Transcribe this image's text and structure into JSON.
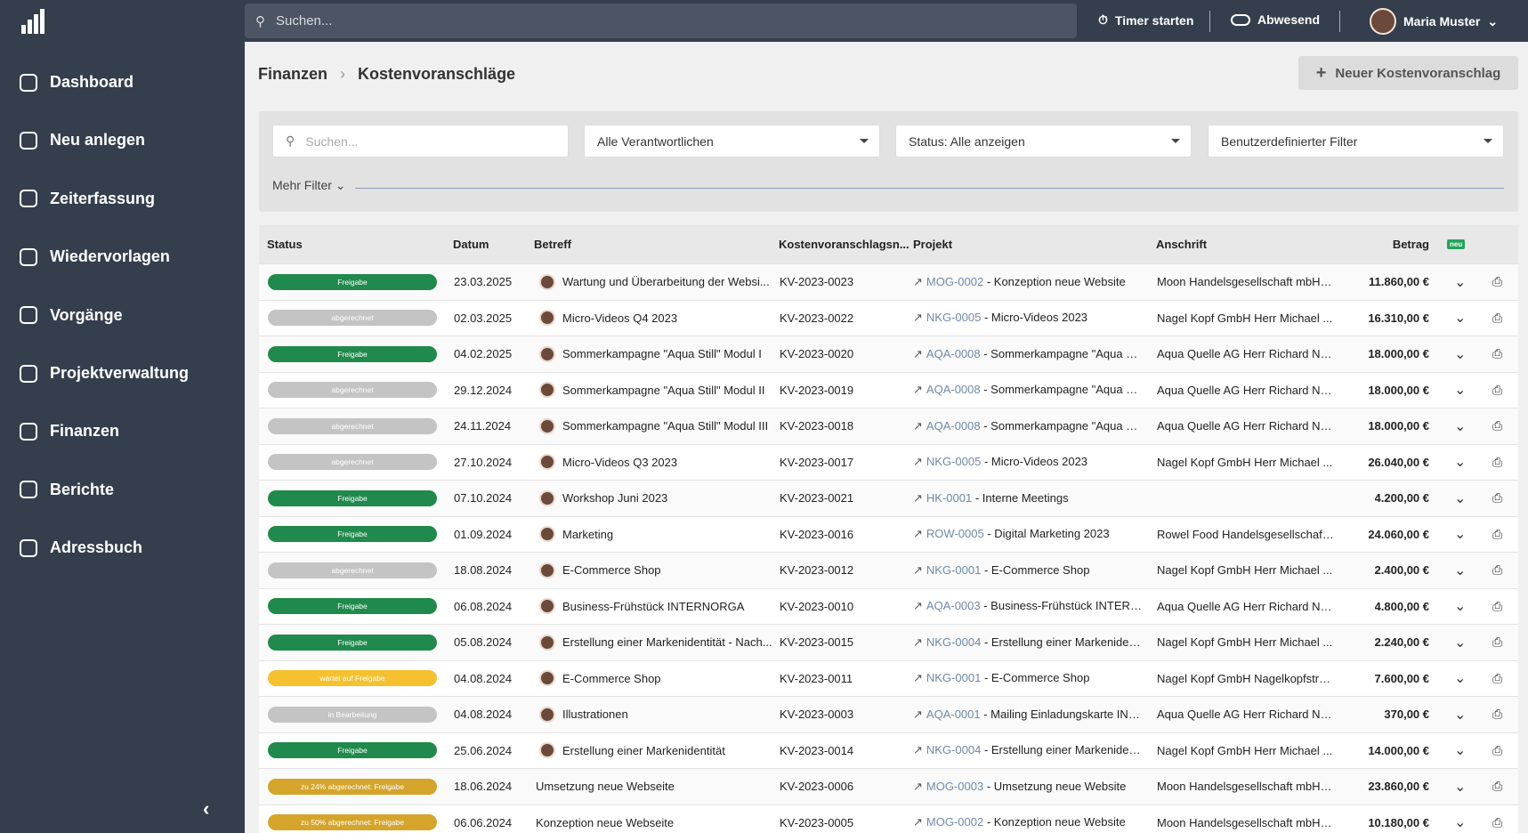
{
  "nav": [
    "Dashboard",
    "Neu anlegen",
    "Zeiterfassung",
    "Wiedervorlagen",
    "Vorgänge",
    "Projektverwaltung",
    "Finanzen",
    "Berichte",
    "Adressbuch"
  ],
  "topbar": {
    "search": "Suchen...",
    "timer": "Timer starten",
    "status": "Abwesend",
    "user": "Maria Muster"
  },
  "breadcrumb": [
    "Finanzen",
    "Kostenvoranschläge"
  ],
  "new_button": "Neuer Kostenvoranschlag",
  "filters": {
    "search": "Suchen...",
    "responsible": "Alle Verantwortlichen",
    "status": "Status: Alle anzeigen",
    "custom": "Benutzerdefinierter Filter",
    "more": "Mehr Filter"
  },
  "table": {
    "headers": [
      "Status",
      "Datum",
      "Betreff",
      "Kostenvoranschlagsn...",
      "Projekt",
      "Anschrift",
      "Betrag"
    ],
    "badge": "neu",
    "rows": [
      {
        "status": "Freigabe",
        "color": "#1f8a4c",
        "date": "23.03.2025",
        "subject": "Wartung und Überarbeitung der Websi...",
        "number": "KV-2023-0023",
        "project_code": "MOG-0002",
        "project": " - Konzeption neue Website",
        "address": "Moon Handelsgesellschaft mbH F...",
        "amount": "11.860,00 €",
        "avatar": true
      },
      {
        "status": "abgerechnet",
        "color": "#c4c4c4",
        "date": "02.03.2025",
        "subject": "Micro-Videos Q4 2023",
        "number": "KV-2023-0022",
        "project_code": "NKG-0005",
        "project": " - Micro-Videos 2023",
        "address": "Nagel Kopf GmbH Herr Michael ...",
        "amount": "16.310,00 €",
        "avatar": true
      },
      {
        "status": "Freigabe",
        "color": "#1f8a4c",
        "date": "04.02.2025",
        "subject": "Sommerkampagne \"Aqua Still\" Modul I",
        "number": "KV-2023-0020",
        "project_code": "AQA-0008",
        "project": " - Sommerkampagne \"Aqua Still\"",
        "address": "Aqua Quelle AG Herr Richard Ne...",
        "amount": "18.000,00 €",
        "avatar": true
      },
      {
        "status": "abgerechnet",
        "color": "#c4c4c4",
        "date": "29.12.2024",
        "subject": "Sommerkampagne \"Aqua Still\" Modul II",
        "number": "KV-2023-0019",
        "project_code": "AQA-0008",
        "project": " - Sommerkampagne \"Aqua Still\"",
        "address": "Aqua Quelle AG Herr Richard Ne...",
        "amount": "18.000,00 €",
        "avatar": true
      },
      {
        "status": "abgerechnet",
        "color": "#c4c4c4",
        "date": "24.11.2024",
        "subject": "Sommerkampagne \"Aqua Still\" Modul III",
        "number": "KV-2023-0018",
        "project_code": "AQA-0008",
        "project": " - Sommerkampagne \"Aqua Still\"",
        "address": "Aqua Quelle AG Herr Richard Ne...",
        "amount": "18.000,00 €",
        "avatar": true
      },
      {
        "status": "abgerechnet",
        "color": "#c4c4c4",
        "date": "27.10.2024",
        "subject": "Micro-Videos Q3 2023",
        "number": "KV-2023-0017",
        "project_code": "NKG-0005",
        "project": " - Micro-Videos 2023",
        "address": "Nagel Kopf GmbH Herr Michael ...",
        "amount": "26.040,00 €",
        "avatar": true
      },
      {
        "status": "Freigabe",
        "color": "#1f8a4c",
        "date": "07.10.2024",
        "subject": "Workshop Juni 2023",
        "number": "KV-2023-0021",
        "project_code": "HK-0001",
        "project": " - Interne Meetings",
        "address": null,
        "amount": "4.200,00 €",
        "avatar": true
      },
      {
        "status": "Freigabe",
        "color": "#1f8a4c",
        "date": "01.09.2024",
        "subject": "Marketing",
        "number": "KV-2023-0016",
        "project_code": "ROW-0005",
        "project": " - Digital Marketing 2023",
        "address": "Rowel Food Handelsgesellschaft ...",
        "amount": "24.060,00 €",
        "avatar": true
      },
      {
        "status": "abgerechnet",
        "color": "#c4c4c4",
        "date": "18.08.2024",
        "subject": "E-Commerce Shop",
        "number": "KV-2023-0012",
        "project_code": "NKG-0001",
        "project": " - E-Commerce Shop",
        "address": "Nagel Kopf GmbH Herr Michael ...",
        "amount": "2.400,00 €",
        "avatar": true
      },
      {
        "status": "Freigabe",
        "color": "#1f8a4c",
        "date": "06.08.2024",
        "subject": "Business-Frühstück INTERNORGA",
        "number": "KV-2023-0010",
        "project_code": "AQA-0003",
        "project": " - Business-Frühstück INTERN...",
        "address": "Aqua Quelle AG Herr Richard Ne...",
        "amount": "4.800,00 €",
        "avatar": true
      },
      {
        "status": "Freigabe",
        "color": "#1f8a4c",
        "date": "05.08.2024",
        "subject": "Erstellung einer Markenidentität - Nach...",
        "number": "KV-2023-0015",
        "project_code": "NKG-0004",
        "project": " - Erstellung einer Markeniden...",
        "address": "Nagel Kopf GmbH Herr Michael ...",
        "amount": "2.240,00 €",
        "avatar": true
      },
      {
        "status": "wartet auf Freigabe",
        "color": "#f5c12e",
        "date": "04.08.2024",
        "subject": "E-Commerce Shop",
        "number": "KV-2023-0011",
        "project_code": "NKG-0001",
        "project": " - E-Commerce Shop",
        "address": "Nagel Kopf GmbH Nagelkopfstra...",
        "amount": "7.600,00 €",
        "avatar": true
      },
      {
        "status": "in Bearbeitung",
        "color": "#c4c4c4",
        "date": "04.08.2024",
        "subject": "Illustrationen",
        "number": "KV-2023-0003",
        "project_code": "AQA-0001",
        "project": " - Mailing Einladungskarte INT...",
        "address": "Aqua Quelle AG Herr Richard Ne...",
        "amount": "370,00 €",
        "avatar": true
      },
      {
        "status": "Freigabe",
        "color": "#1f8a4c",
        "date": "25.06.2024",
        "subject": "Erstellung einer Markenidentität",
        "number": "KV-2023-0014",
        "project_code": "NKG-0004",
        "project": " - Erstellung einer Markeniden...",
        "address": "Nagel Kopf GmbH Herr Michael ...",
        "amount": "14.000,00 €",
        "avatar": true
      },
      {
        "status": "zu 24% abgerechnet: Freigabe",
        "color": "#d4a52a",
        "date": "18.06.2024",
        "subject": "Umsetzung neue Webseite",
        "number": "KV-2023-0006",
        "project_code": "MOG-0003",
        "project": " - Umsetzung neue Website",
        "address": "Moon Handelsgesellschaft mbH F...",
        "amount": "23.860,00 €",
        "avatar": false
      },
      {
        "status": "zu 50% abgerechnet: Freigabe",
        "color": "#d4a52a",
        "date": "06.06.2024",
        "subject": "Konzeption neue Webseite",
        "number": "KV-2023-0005",
        "project_code": "MOG-0002",
        "project": " - Konzeption neue Website",
        "address": "Moon Handelsgesellschaft mbH F...",
        "amount": "10.180,00 €",
        "avatar": false
      }
    ]
  }
}
